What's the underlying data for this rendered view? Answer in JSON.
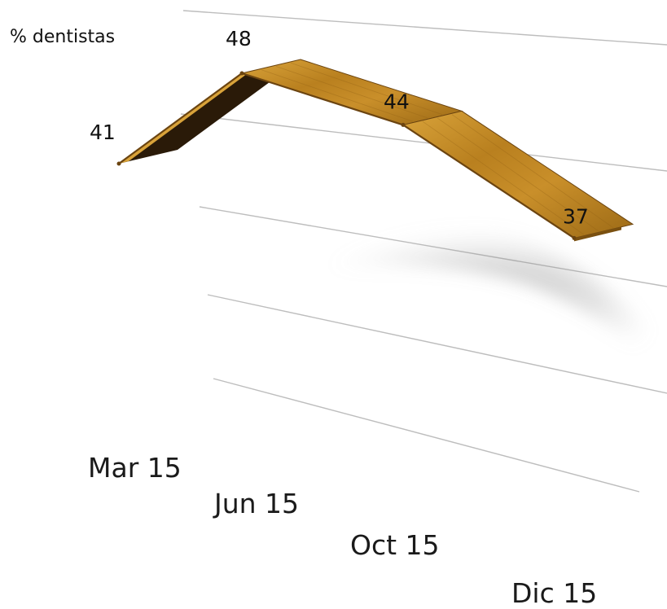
{
  "chart_data": {
    "type": "line",
    "title": "",
    "ylabel": "% dentistas",
    "xlabel": "",
    "categories": [
      "Mar 15",
      "Jun 15",
      "Oct 15",
      "Dic 15"
    ],
    "values": [
      41,
      48,
      44,
      37
    ],
    "grid": true,
    "style": "3d-ribbon",
    "colors": {
      "ribbon_top": "#b9801f",
      "ribbon_light": "#d9a33a",
      "ribbon_side": "#2a1a08",
      "edge": "#6b4410",
      "grid": "#bdbdbd",
      "text": "#111111"
    }
  }
}
